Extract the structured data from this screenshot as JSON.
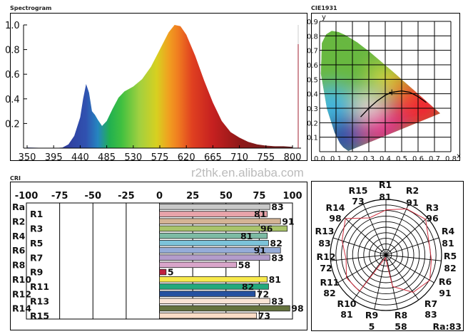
{
  "watermark": "r2thk.en.alibaba.com",
  "chart_data": [
    {
      "type": "area",
      "title": "Spectrogram",
      "xlim": [
        350,
        800
      ],
      "ylim": [
        0,
        1.0
      ],
      "xticks": [
        "350",
        "395",
        "440",
        "485",
        "530",
        "575",
        "620",
        "665",
        "710",
        "755",
        "800"
      ],
      "yticks": [
        "0.2",
        "0.4",
        "0.6",
        "0.8",
        "1.0"
      ],
      "x": [
        350,
        395,
        410,
        420,
        430,
        440,
        445,
        450,
        455,
        460,
        465,
        470,
        477,
        485,
        495,
        505,
        515,
        530,
        545,
        560,
        575,
        590,
        600,
        610,
        620,
        635,
        650,
        665,
        680,
        695,
        710,
        725,
        740,
        755,
        770,
        785,
        800
      ],
      "values": [
        0.005,
        0,
        0.005,
        0.03,
        0.1,
        0.25,
        0.4,
        0.52,
        0.45,
        0.3,
        0.27,
        0.23,
        0.18,
        0.22,
        0.32,
        0.41,
        0.46,
        0.5,
        0.56,
        0.66,
        0.8,
        0.94,
        1.0,
        0.99,
        0.92,
        0.75,
        0.55,
        0.37,
        0.22,
        0.13,
        0.085,
        0.05,
        0.03,
        0.02,
        0.015,
        0.015,
        0.01
      ],
      "fill": "wavelength spectrum colors"
    },
    {
      "type": "scatter",
      "title": "CIE1931",
      "ylabel": "y",
      "xlabel": "x",
      "xlim": [
        0,
        0.8
      ],
      "ylim": [
        0,
        0.9
      ],
      "xticks": [
        "0.0",
        "0.1",
        "0.2",
        "0.3",
        "0.4",
        "0.5",
        "0.6",
        "0.7",
        "0.8"
      ],
      "yticks": [
        "0.1",
        "0.2",
        "0.3",
        "0.4",
        "0.5",
        "0.6",
        "0.7",
        "0.8",
        "0.9"
      ],
      "grid": true,
      "point": {
        "x": 0.44,
        "y": 0.41
      },
      "planckian_locus": [
        [
          0.25,
          0.24
        ],
        [
          0.3,
          0.3
        ],
        [
          0.35,
          0.35
        ],
        [
          0.4,
          0.39
        ],
        [
          0.44,
          0.41
        ],
        [
          0.5,
          0.42
        ],
        [
          0.55,
          0.41
        ],
        [
          0.6,
          0.38
        ],
        [
          0.65,
          0.34
        ]
      ]
    },
    {
      "type": "bar",
      "title": "CRI",
      "orientation": "horizontal",
      "xlim": [
        -100,
        100
      ],
      "xticks": [
        "-100",
        "-75",
        "-50",
        "-25",
        "0",
        "25",
        "50",
        "75",
        "100"
      ],
      "categories": [
        "Ra",
        "R1",
        "R2",
        "R3",
        "R4",
        "R5",
        "R6",
        "R7",
        "R8",
        "R9",
        "R10",
        "R11",
        "R12",
        "R13",
        "R14",
        "R15"
      ],
      "values": [
        83,
        81,
        91,
        96,
        81,
        82,
        91,
        83,
        58,
        5,
        81,
        82,
        72,
        83,
        98,
        73
      ],
      "colors": [
        "#c8c8c8",
        "#e8a4aa",
        "#d4b394",
        "#a9c46a",
        "#7dbba4",
        "#7cc3da",
        "#95acd8",
        "#b39ccb",
        "#d9a5ca",
        "#c0203f",
        "#f8ea4c",
        "#24a97c",
        "#2551a0",
        "#f9e3d4",
        "#65733f",
        "#f9dcc6"
      ]
    },
    {
      "type": "radar",
      "categories": [
        "R1",
        "R2",
        "R3",
        "R4",
        "R5",
        "R6",
        "R7",
        "R8",
        "R9",
        "R10",
        "R11",
        "R12",
        "R13",
        "R14",
        "R15"
      ],
      "values": [
        81,
        91,
        96,
        81,
        82,
        91,
        83,
        58,
        5,
        81,
        82,
        72,
        83,
        98,
        73
      ],
      "rlim": [
        0,
        100
      ],
      "line_color": "#d03040",
      "annotation": "Ra:83"
    }
  ]
}
